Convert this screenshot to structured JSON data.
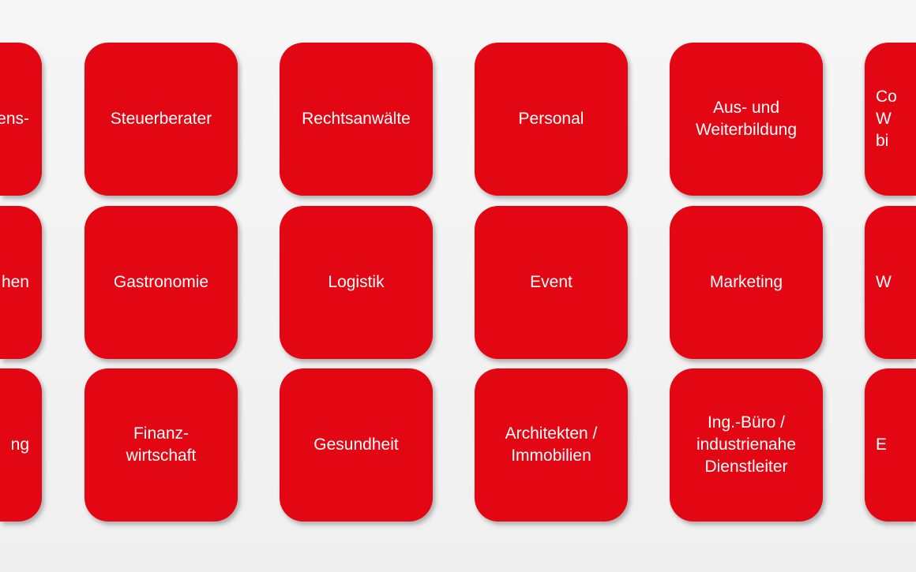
{
  "brand_color": "#e30613",
  "tiles": [
    [
      "ens-\n ",
      "Steuerberater",
      "Rechtsanwälte",
      "Personal",
      "Aus- und\nWeiterbildung",
      "Co\n  W\nbi"
    ],
    [
      "hen",
      "Gastronomie",
      "Logistik",
      "Event",
      "Marketing",
      "W"
    ],
    [
      "ng",
      "Finanz-\nwirtschaft",
      "Gesundheit",
      "Architekten /\nImmobilien",
      "Ing.-Büro /\nindustrienahe\nDienstleiter",
      "E"
    ]
  ]
}
